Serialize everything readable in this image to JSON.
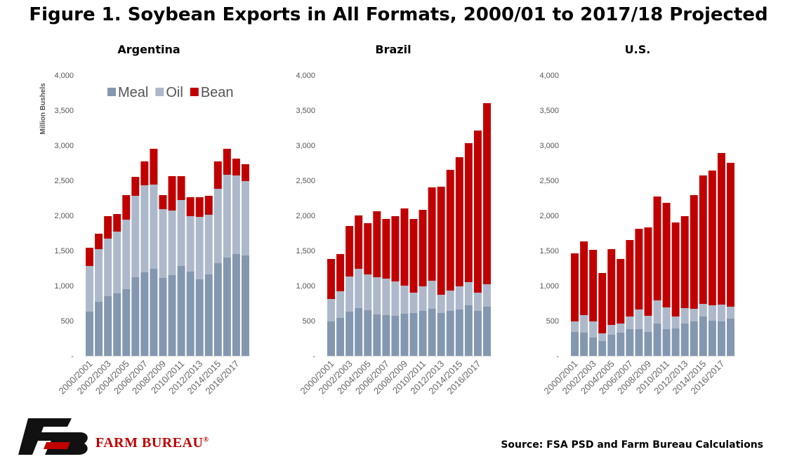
{
  "title": "Figure 1. Soybean Exports in All Formats, 2000/01 to 2017/18 Projected",
  "source": "Source: FSA PSD and Farm Bureau Calculations",
  "logo": {
    "name": "FARM BUREAU",
    "reg": "®",
    "color": "#c00000"
  },
  "colors": {
    "Meal": "#8497b0",
    "Oil": "#adb9ca",
    "Bean": "#c00000"
  },
  "chart_data": [
    {
      "type": "bar",
      "stacked": true,
      "title": "Argentina",
      "ylabel": "Million Bushels",
      "ylim": [
        0,
        4000
      ],
      "yticks": [
        "-",
        "500",
        "1,000",
        "1,500",
        "2,000",
        "2,500",
        "3,000",
        "3,500",
        "4,000"
      ],
      "xtick_labels": [
        "2000/2001",
        "2002/2003",
        "2004/2005",
        "2006/2007",
        "2008/2009",
        "2010/2011",
        "2012/2013",
        "2014/2015",
        "2016/2017"
      ],
      "legend": [
        "Meal",
        "Oil",
        "Bean"
      ],
      "legend_position": "top-right",
      "categories": [
        "2000/2001",
        "2001/2002",
        "2002/2003",
        "2003/2004",
        "2004/2005",
        "2005/2006",
        "2006/2007",
        "2007/2008",
        "2008/2009",
        "2009/2010",
        "2010/2011",
        "2011/2012",
        "2012/2013",
        "2013/2014",
        "2014/2015",
        "2015/2016",
        "2016/2017",
        "2017/2018"
      ],
      "series": [
        {
          "name": "Meal",
          "values": [
            630,
            770,
            850,
            890,
            950,
            1120,
            1190,
            1240,
            1110,
            1150,
            1280,
            1200,
            1090,
            1160,
            1320,
            1400,
            1450,
            1430
          ]
        },
        {
          "name": "Oil",
          "values": [
            650,
            750,
            820,
            880,
            990,
            1160,
            1240,
            1200,
            980,
            920,
            940,
            790,
            890,
            850,
            1060,
            1180,
            1120,
            1060
          ]
        },
        {
          "name": "Bean",
          "values": [
            260,
            220,
            320,
            250,
            350,
            270,
            340,
            510,
            200,
            490,
            340,
            270,
            280,
            270,
            390,
            370,
            240,
            240
          ]
        }
      ]
    },
    {
      "type": "bar",
      "stacked": true,
      "title": "Brazil",
      "ylim": [
        0,
        4000
      ],
      "yticks": [
        "-",
        "500",
        "1,000",
        "1,500",
        "2,000",
        "2,500",
        "3,000",
        "3,500",
        "4,000"
      ],
      "xtick_labels": [
        "2000/2001",
        "2002/2003",
        "2004/2005",
        "2006/2007",
        "2008/2009",
        "2010/2011",
        "2012/2013",
        "2014/2015",
        "2016/2017"
      ],
      "categories": [
        "2000/2001",
        "2001/2002",
        "2002/2003",
        "2003/2004",
        "2004/2005",
        "2005/2006",
        "2006/2007",
        "2007/2008",
        "2008/2009",
        "2009/2010",
        "2010/2011",
        "2011/2012",
        "2012/2013",
        "2013/2014",
        "2014/2015",
        "2015/2016",
        "2016/2017",
        "2017/2018"
      ],
      "series": [
        {
          "name": "Meal",
          "values": [
            490,
            540,
            630,
            680,
            650,
            590,
            580,
            570,
            600,
            610,
            640,
            670,
            610,
            640,
            660,
            720,
            640,
            700
          ]
        },
        {
          "name": "Oil",
          "values": [
            320,
            380,
            500,
            560,
            510,
            530,
            520,
            490,
            400,
            290,
            350,
            400,
            260,
            290,
            330,
            330,
            260,
            320
          ]
        },
        {
          "name": "Bean",
          "values": [
            570,
            530,
            720,
            760,
            730,
            940,
            850,
            930,
            1100,
            1050,
            1090,
            1330,
            1540,
            1720,
            1840,
            1980,
            2310,
            2580
          ]
        }
      ]
    },
    {
      "type": "bar",
      "stacked": true,
      "title": "U.S.",
      "ylim": [
        0,
        4000
      ],
      "yticks": [
        "-",
        "500",
        "1,000",
        "1,500",
        "2,000",
        "2,500",
        "3,000",
        "3,500",
        "4,000"
      ],
      "xtick_labels": [
        "2000/2001",
        "2002/2003",
        "2004/2005",
        "2006/2007",
        "2008/2009",
        "2010/2011",
        "2012/2013",
        "2014/2015",
        "2016/2017"
      ],
      "categories": [
        "2000/2001",
        "2001/2002",
        "2002/2003",
        "2003/2004",
        "2004/2005",
        "2005/2006",
        "2006/2007",
        "2007/2008",
        "2008/2009",
        "2009/2010",
        "2010/2011",
        "2011/2012",
        "2012/2013",
        "2013/2014",
        "2014/2015",
        "2015/2016",
        "2016/2017",
        "2017/2018"
      ],
      "series": [
        {
          "name": "Meal",
          "values": [
            340,
            330,
            260,
            210,
            300,
            330,
            380,
            380,
            340,
            460,
            380,
            390,
            460,
            490,
            560,
            500,
            490,
            530
          ]
        },
        {
          "name": "Oil",
          "values": [
            150,
            250,
            230,
            110,
            140,
            130,
            180,
            280,
            230,
            330,
            310,
            170,
            220,
            180,
            180,
            220,
            240,
            170
          ]
        },
        {
          "name": "Bean",
          "values": [
            970,
            1050,
            1020,
            860,
            1080,
            920,
            1090,
            1150,
            1260,
            1480,
            1490,
            1340,
            1310,
            1620,
            1830,
            1920,
            2160,
            2050
          ]
        }
      ]
    }
  ]
}
